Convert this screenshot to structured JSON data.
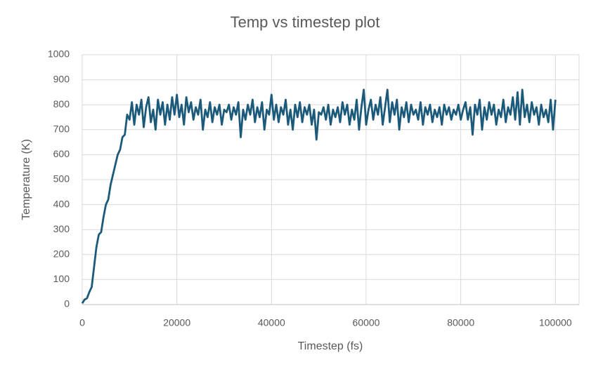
{
  "chart_data": {
    "type": "line",
    "title": "Temp vs timestep plot",
    "x_label": "Timestep (fs)",
    "y_label": "Temperature (K)",
    "x": [
      0,
      500,
      1000,
      1500,
      2000,
      2500,
      3000,
      3500,
      4000,
      4500,
      5000,
      5500,
      6000,
      6500,
      7000,
      7500,
      8000,
      8500,
      9000,
      9500,
      10000,
      10500,
      11000,
      11500,
      12000,
      12500,
      13000,
      13500,
      14000,
      14500,
      15000,
      15500,
      16000,
      16500,
      17000,
      17500,
      18000,
      18500,
      19000,
      19500,
      20000,
      20500,
      21000,
      21500,
      22000,
      22500,
      23000,
      23500,
      24000,
      24500,
      25000,
      25500,
      26000,
      26500,
      27000,
      27500,
      28000,
      28500,
      29000,
      29500,
      30000,
      30500,
      31000,
      31500,
      32000,
      32500,
      33000,
      33500,
      34000,
      34500,
      35000,
      35500,
      36000,
      36500,
      37000,
      37500,
      38000,
      38500,
      39000,
      39500,
      40000,
      40500,
      41000,
      41500,
      42000,
      42500,
      43000,
      43500,
      44000,
      44500,
      45000,
      45500,
      46000,
      46500,
      47000,
      47500,
      48000,
      48500,
      49000,
      49500,
      50000,
      50500,
      51000,
      51500,
      52000,
      52500,
      53000,
      53500,
      54000,
      54500,
      55000,
      55500,
      56000,
      56500,
      57000,
      57500,
      58000,
      58500,
      59000,
      59500,
      60000,
      60500,
      61000,
      61500,
      62000,
      62500,
      63000,
      63500,
      64000,
      64500,
      65000,
      65500,
      66000,
      66500,
      67000,
      67500,
      68000,
      68500,
      69000,
      69500,
      70000,
      70500,
      71000,
      71500,
      72000,
      72500,
      73000,
      73500,
      74000,
      74500,
      75000,
      75500,
      76000,
      76500,
      77000,
      77500,
      78000,
      78500,
      79000,
      79500,
      80000,
      80500,
      81000,
      81500,
      82000,
      82500,
      83000,
      83500,
      84000,
      84500,
      85000,
      85500,
      86000,
      86500,
      87000,
      87500,
      88000,
      88500,
      89000,
      89500,
      90000,
      90500,
      91000,
      91500,
      92000,
      92500,
      93000,
      93500,
      94000,
      94500,
      95000,
      95500,
      96000,
      96500,
      97000,
      97500,
      98000,
      98500,
      99000,
      99500,
      100000
    ],
    "series": [
      {
        "name": "Temperature",
        "color": "#1b5a7a",
        "values": [
          5,
          20,
          25,
          50,
          70,
          150,
          230,
          280,
          290,
          350,
          400,
          420,
          480,
          520,
          560,
          600,
          620,
          670,
          680,
          760,
          740,
          810,
          720,
          800,
          760,
          820,
          710,
          790,
          830,
          730,
          780,
          700,
          820,
          760,
          810,
          720,
          800,
          740,
          830,
          760,
          840,
          750,
          800,
          720,
          830,
          770,
          810,
          740,
          790,
          760,
          820,
          700,
          780,
          750,
          810,
          730,
          790,
          760,
          800,
          720,
          780,
          770,
          800,
          740,
          790,
          760,
          810,
          670,
          780,
          740,
          800,
          760,
          820,
          730,
          790,
          750,
          810,
          700,
          780,
          760,
          840,
          740,
          800,
          730,
          790,
          760,
          820,
          720,
          780,
          700,
          800,
          750,
          810,
          730,
          790,
          760,
          800,
          720,
          780,
          660,
          770,
          760,
          790,
          740,
          800,
          720,
          780,
          750,
          790,
          730,
          810,
          760,
          800,
          720,
          780,
          740,
          820,
          700,
          790,
          860,
          720,
          780,
          820,
          740,
          800,
          760,
          830,
          720,
          790,
          860,
          730,
          810,
          760,
          820,
          700,
          790,
          750,
          810,
          730,
          800,
          760,
          780,
          740,
          810,
          720,
          790,
          760,
          800,
          730,
          780,
          750,
          790,
          720,
          800,
          760,
          790,
          740,
          780,
          760,
          800,
          740,
          780,
          810,
          740,
          790,
          680,
          800,
          760,
          820,
          700,
          790,
          740,
          810,
          760,
          800,
          720,
          780,
          750,
          820,
          730,
          790,
          760,
          830,
          740,
          850,
          720,
          860,
          750,
          800,
          730,
          810,
          760,
          790,
          720,
          800,
          750,
          780,
          730,
          820,
          700,
          820
        ]
      }
    ],
    "xlim": [
      0,
      105000
    ],
    "xticks": [
      0,
      20000,
      40000,
      60000,
      80000,
      100000
    ],
    "ylim": [
      0,
      1000
    ],
    "yticks": [
      0,
      100,
      200,
      300,
      400,
      500,
      600,
      700,
      800,
      900,
      1000
    ],
    "grid": true
  }
}
